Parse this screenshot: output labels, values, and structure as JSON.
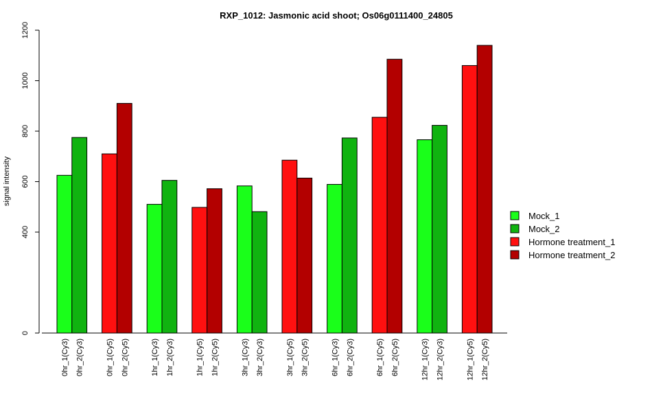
{
  "chart_data": {
    "type": "bar",
    "title": "RXP_1012: Jasmonic acid shoot; Os06g0111400_24805",
    "ylabel": "signal intensity",
    "xlabel": "",
    "ylim": [
      0,
      1200
    ],
    "yticks": [
      0,
      400,
      600,
      800,
      1000,
      1200
    ],
    "grid": false,
    "legend_position": "right",
    "legend": [
      {
        "name": "Mock_1",
        "color": "#1aff1a"
      },
      {
        "name": "Mock_2",
        "color": "#10b310"
      },
      {
        "name": "Hormone treatment_1",
        "color": "#ff1010"
      },
      {
        "name": "Hormone treatment_2",
        "color": "#b30000"
      }
    ],
    "groups": [
      {
        "bars": [
          {
            "label": "0hr_1(Cy3)",
            "value": 625,
            "series": 0
          },
          {
            "label": "0hr_2(Cy3)",
            "value": 775,
            "series": 1
          }
        ]
      },
      {
        "bars": [
          {
            "label": "0hr_1(Cy5)",
            "value": 710,
            "series": 2
          },
          {
            "label": "0hr_2(Cy5)",
            "value": 910,
            "series": 3
          }
        ]
      },
      {
        "bars": [
          {
            "label": "1hr_1(Cy3)",
            "value": 510,
            "series": 0
          },
          {
            "label": "1hr_2(Cy3)",
            "value": 605,
            "series": 1
          }
        ]
      },
      {
        "bars": [
          {
            "label": "1hr_1(Cy5)",
            "value": 498,
            "series": 2
          },
          {
            "label": "1hr_2(Cy5)",
            "value": 572,
            "series": 3
          }
        ]
      },
      {
        "bars": [
          {
            "label": "3hr_1(Cy3)",
            "value": 583,
            "series": 0
          },
          {
            "label": "3hr_2(Cy3)",
            "value": 481,
            "series": 1
          }
        ]
      },
      {
        "bars": [
          {
            "label": "3hr_1(Cy5)",
            "value": 685,
            "series": 2
          },
          {
            "label": "3hr_2(Cy5)",
            "value": 614,
            "series": 3
          }
        ]
      },
      {
        "bars": [
          {
            "label": "6hr_1(Cy3)",
            "value": 589,
            "series": 0
          },
          {
            "label": "6hr_2(Cy3)",
            "value": 773,
            "series": 1
          }
        ]
      },
      {
        "bars": [
          {
            "label": "6hr_1(Cy5)",
            "value": 855,
            "series": 2
          },
          {
            "label": "6hr_2(Cy5)",
            "value": 1085,
            "series": 3
          }
        ]
      },
      {
        "bars": [
          {
            "label": "12hr_1(Cy3)",
            "value": 766,
            "series": 0
          },
          {
            "label": "12hr_2(Cy3)",
            "value": 823,
            "series": 1
          }
        ]
      },
      {
        "bars": [
          {
            "label": "12hr_1(Cy5)",
            "value": 1060,
            "series": 2
          },
          {
            "label": "12hr_2(Cy5)",
            "value": 1140,
            "series": 3
          }
        ]
      }
    ]
  }
}
